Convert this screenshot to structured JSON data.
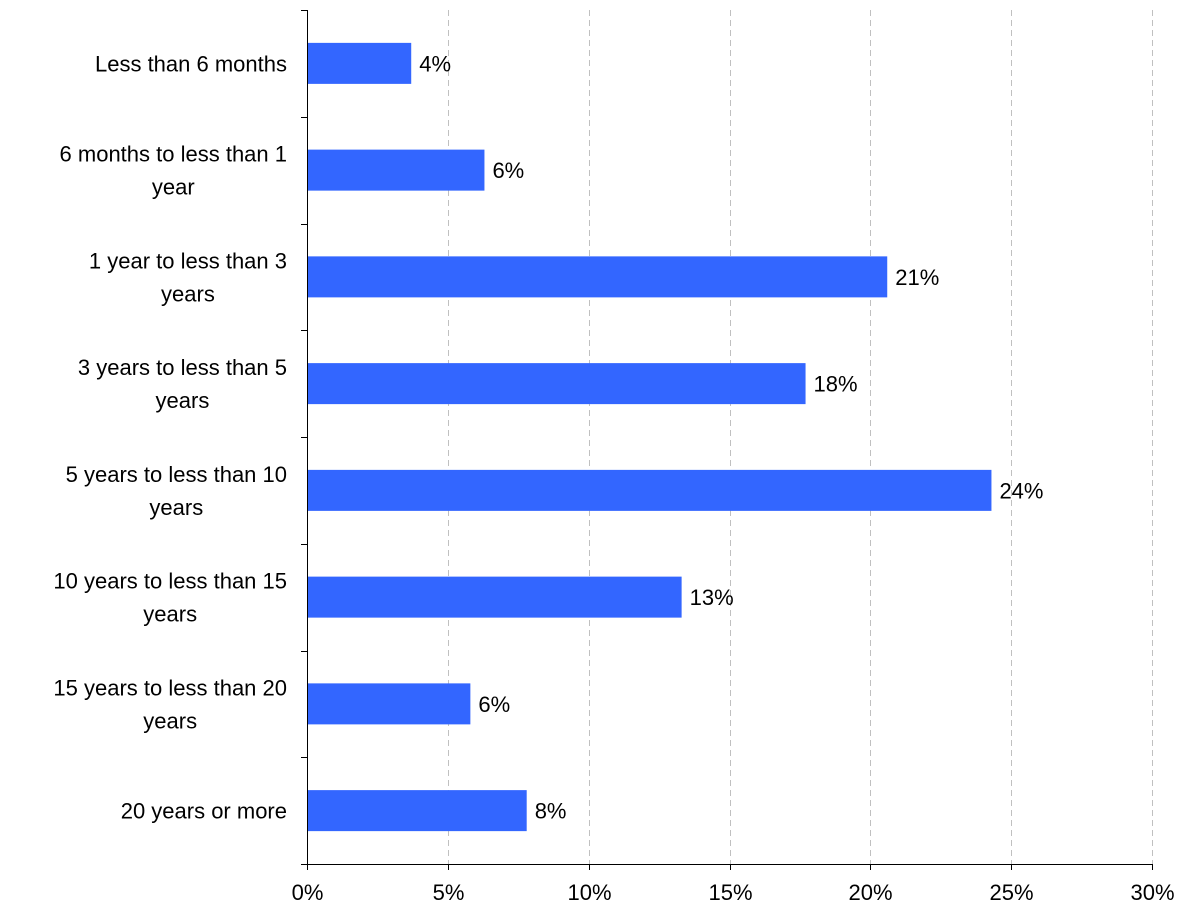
{
  "chart_data": {
    "type": "bar",
    "orientation": "horizontal",
    "categories": [
      [
        "Less than 6 months"
      ],
      [
        "6 months to less than 1",
        "year"
      ],
      [
        "1 year to less than 3",
        "years"
      ],
      [
        "3 years to less than 5",
        "years"
      ],
      [
        "5 years to less than 10",
        "years"
      ],
      [
        "10 years to less than 15",
        "years"
      ],
      [
        "15 years to less than 20",
        "years"
      ],
      [
        "20 years or more"
      ]
    ],
    "values": [
      3.7,
      6.3,
      20.6,
      17.7,
      24.3,
      13.3,
      5.8,
      7.8
    ],
    "data_labels": [
      "4%",
      "6%",
      "21%",
      "18%",
      "24%",
      "13%",
      "6%",
      "8%"
    ],
    "xlim": [
      0,
      30
    ],
    "x_ticks": [
      0,
      5,
      10,
      15,
      20,
      25,
      30
    ],
    "x_tick_labels": [
      "0%",
      "5%",
      "10%",
      "15%",
      "20%",
      "25%",
      "30%"
    ],
    "grid": "vertical dashed",
    "bar_color": "#3366ff",
    "gridline_color": "#c0c0c0",
    "axis_color": "#000000"
  }
}
